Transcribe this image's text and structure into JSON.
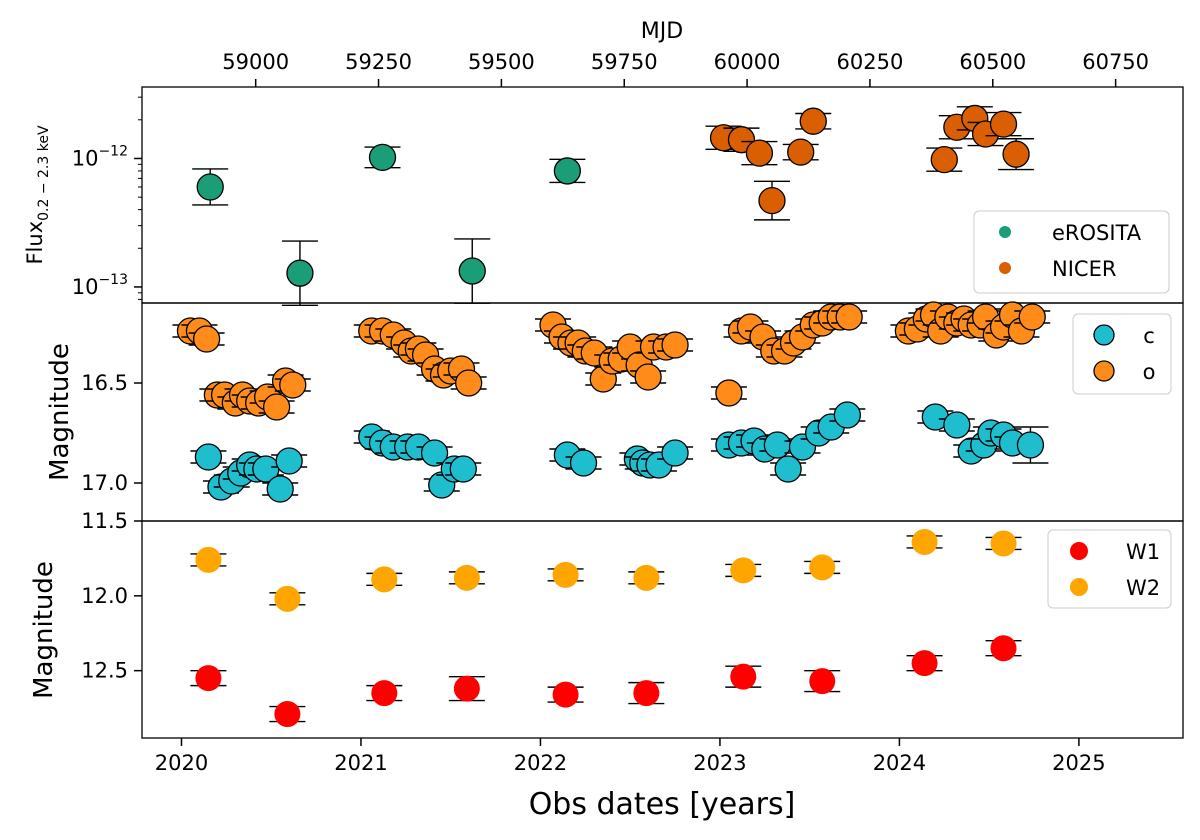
{
  "chart_data": [
    {
      "panel": "top",
      "type": "scatter",
      "ylabel_base": "Flux",
      "ylabel_sub": "0.2 − 2.3 keV",
      "yscale": "log",
      "ylim": [
        7.5e-14,
        3.6e-12
      ],
      "yticks": [
        {
          "value": 1e-12,
          "base": "10",
          "exp": "−12"
        },
        {
          "value": 1e-13,
          "base": "10",
          "exp": "−13"
        }
      ],
      "legend": {
        "position": "lower-right",
        "entries": [
          "eROSITA",
          "NICER"
        ]
      },
      "series": [
        {
          "name": "eROSITA",
          "color": "#1b9e77",
          "x": [
            2020.16,
            2020.66,
            2021.12,
            2021.62,
            2022.15
          ],
          "y": [
            6e-13,
            1.28e-13,
            1.02e-12,
            1.33e-13,
            8e-13
          ],
          "yerr": [
            0.14,
            0.25,
            0.08,
            0.25,
            0.09
          ]
        },
        {
          "name": "NICER",
          "color": "#d95f02",
          "x": [
            2023.02,
            2023.12,
            2023.22,
            2023.29,
            2023.45,
            2023.52,
            2024.25,
            2024.32,
            2024.42,
            2024.48,
            2024.58,
            2024.65
          ],
          "y": [
            1.45e-12,
            1.4e-12,
            1.1e-12,
            4.7e-13,
            1.12e-12,
            1.95e-12,
            9.8e-13,
            1.75e-12,
            2.05e-12,
            1.55e-12,
            1.85e-12,
            1.08e-12
          ],
          "yerr": [
            0.09,
            0.09,
            0.09,
            0.15,
            0.06,
            0.06,
            0.09,
            0.09,
            0.09,
            0.09,
            0.09,
            0.12
          ]
        }
      ]
    },
    {
      "panel": "middle",
      "type": "scatter",
      "ylabel": "Magnitude",
      "ylim": [
        17.19,
        16.1
      ],
      "yticks": [
        16.5,
        17.0
      ],
      "legend": {
        "position": "top-right",
        "entries": [
          "c",
          "o"
        ]
      },
      "series": [
        {
          "name": "c",
          "color": "#1fbecf",
          "x": [
            2020.15,
            2020.22,
            2020.28,
            2020.33,
            2020.38,
            2020.42,
            2020.47,
            2020.55,
            2020.6,
            2021.06,
            2021.12,
            2021.18,
            2021.26,
            2021.32,
            2021.41,
            2021.45,
            2021.52,
            2021.57,
            2022.15,
            2022.24,
            2022.54,
            2022.57,
            2022.61,
            2022.66,
            2022.75,
            2023.05,
            2023.12,
            2023.19,
            2023.25,
            2023.32,
            2023.38,
            2023.46,
            2023.55,
            2023.62,
            2023.71,
            2024.2,
            2024.32,
            2024.4,
            2024.47,
            2024.51,
            2024.58,
            2024.63,
            2024.73
          ],
          "y": [
            16.87,
            17.02,
            16.99,
            16.95,
            16.91,
            16.93,
            16.93,
            17.03,
            16.89,
            16.77,
            16.8,
            16.82,
            16.82,
            16.82,
            16.85,
            17.01,
            16.93,
            16.93,
            16.86,
            16.9,
            16.88,
            16.9,
            16.91,
            16.91,
            16.85,
            16.81,
            16.8,
            16.79,
            16.83,
            16.81,
            16.93,
            16.82,
            16.75,
            16.72,
            16.66,
            16.67,
            16.71,
            16.84,
            16.81,
            16.75,
            16.76,
            16.8,
            16.81
          ],
          "yerr": [
            0.03,
            0.03,
            0.03,
            0.03,
            0.03,
            0.03,
            0.03,
            0.03,
            0.03,
            0.03,
            0.03,
            0.03,
            0.03,
            0.03,
            0.03,
            0.03,
            0.03,
            0.03,
            0.03,
            0.03,
            0.03,
            0.03,
            0.03,
            0.03,
            0.03,
            0.03,
            0.03,
            0.03,
            0.03,
            0.03,
            0.03,
            0.03,
            0.03,
            0.03,
            0.03,
            0.03,
            0.03,
            0.03,
            0.03,
            0.03,
            0.03,
            0.03,
            0.09
          ]
        },
        {
          "name": "o",
          "color": "#ff8c1a",
          "x": [
            2020.05,
            2020.1,
            2020.14,
            2020.2,
            2020.24,
            2020.3,
            2020.34,
            2020.38,
            2020.43,
            2020.48,
            2020.53,
            2020.58,
            2020.62,
            2021.06,
            2021.12,
            2021.18,
            2021.24,
            2021.28,
            2021.32,
            2021.36,
            2021.41,
            2021.46,
            2021.5,
            2021.56,
            2021.6,
            2022.07,
            2022.12,
            2022.17,
            2022.21,
            2022.25,
            2022.3,
            2022.35,
            2022.4,
            2022.45,
            2022.5,
            2022.55,
            2022.6,
            2022.63,
            2022.7,
            2022.75,
            2023.05,
            2023.12,
            2023.17,
            2023.24,
            2023.3,
            2023.36,
            2023.41,
            2023.46,
            2023.52,
            2023.57,
            2023.62,
            2023.67,
            2023.72,
            2024.05,
            2024.1,
            2024.15,
            2024.19,
            2024.23,
            2024.27,
            2024.32,
            2024.36,
            2024.4,
            2024.45,
            2024.48,
            2024.54,
            2024.58,
            2024.63,
            2024.68,
            2024.74
          ],
          "y": [
            16.24,
            16.24,
            16.28,
            16.56,
            16.56,
            16.6,
            16.56,
            16.59,
            16.6,
            16.57,
            16.62,
            16.49,
            16.51,
            16.24,
            16.24,
            16.26,
            16.3,
            16.34,
            16.33,
            16.36,
            16.43,
            16.46,
            16.44,
            16.43,
            16.5,
            16.21,
            16.27,
            16.3,
            16.3,
            16.34,
            16.35,
            16.48,
            16.39,
            16.38,
            16.32,
            16.41,
            16.47,
            16.32,
            16.32,
            16.31,
            16.55,
            16.24,
            16.22,
            16.27,
            16.34,
            16.34,
            16.3,
            16.27,
            16.21,
            16.2,
            16.17,
            16.17,
            16.17,
            16.24,
            16.23,
            16.18,
            16.16,
            16.24,
            16.17,
            16.2,
            16.18,
            16.21,
            16.21,
            16.17,
            16.26,
            16.22,
            16.16,
            16.24,
            16.17
          ],
          "yerr": [
            0.03,
            0.03,
            0.03,
            0.03,
            0.03,
            0.03,
            0.03,
            0.03,
            0.03,
            0.03,
            0.03,
            0.03,
            0.03,
            0.03,
            0.03,
            0.03,
            0.03,
            0.03,
            0.03,
            0.03,
            0.03,
            0.03,
            0.03,
            0.03,
            0.03,
            0.03,
            0.03,
            0.03,
            0.03,
            0.03,
            0.03,
            0.03,
            0.03,
            0.03,
            0.03,
            0.03,
            0.03,
            0.03,
            0.03,
            0.03,
            0.03,
            0.03,
            0.03,
            0.03,
            0.03,
            0.03,
            0.03,
            0.03,
            0.03,
            0.03,
            0.03,
            0.03,
            0.03,
            0.03,
            0.03,
            0.03,
            0.03,
            0.03,
            0.03,
            0.03,
            0.03,
            0.03,
            0.03,
            0.03,
            0.03,
            0.03,
            0.03,
            0.03,
            0.03
          ]
        }
      ]
    },
    {
      "panel": "bottom",
      "type": "scatter",
      "ylabel": "Magnitude",
      "ylim": [
        12.95,
        11.5
      ],
      "yticks": [
        11.5,
        12.0,
        12.5
      ],
      "legend": {
        "position": "top-right",
        "entries": [
          "W1",
          "W2"
        ]
      },
      "series": [
        {
          "name": "W1",
          "color": "#ff0000",
          "x": [
            2020.15,
            2020.59,
            2021.13,
            2021.59,
            2022.14,
            2022.59,
            2023.13,
            2023.57,
            2024.14,
            2024.58
          ],
          "y": [
            12.55,
            12.79,
            12.65,
            12.62,
            12.66,
            12.65,
            12.54,
            12.57,
            12.45,
            12.35
          ],
          "yerr": [
            0.05,
            0.05,
            0.05,
            0.08,
            0.05,
            0.07,
            0.07,
            0.07,
            0.05,
            0.05
          ]
        },
        {
          "name": "W2",
          "color": "#ffa500",
          "x": [
            2020.15,
            2020.59,
            2021.13,
            2021.59,
            2022.14,
            2022.59,
            2023.13,
            2023.57,
            2024.14,
            2024.58
          ],
          "y": [
            11.76,
            12.02,
            11.89,
            11.88,
            11.86,
            11.88,
            11.83,
            11.81,
            11.64,
            11.65
          ],
          "yerr": [
            0.04,
            0.04,
            0.04,
            0.04,
            0.04,
            0.04,
            0.04,
            0.04,
            0.04,
            0.04
          ]
        }
      ]
    }
  ],
  "axes": {
    "xlabel": "Obs dates [years]",
    "xlim": [
      2019.78,
      2025.58
    ],
    "xticks": [
      2020,
      2021,
      2022,
      2023,
      2024,
      2025
    ],
    "top_xlabel": "MJD",
    "top_xticks": [
      59000,
      59250,
      59500,
      59750,
      60000,
      60250,
      60500,
      60750
    ],
    "mjd_at_2020": 58849,
    "days_per_year": 365.25
  }
}
